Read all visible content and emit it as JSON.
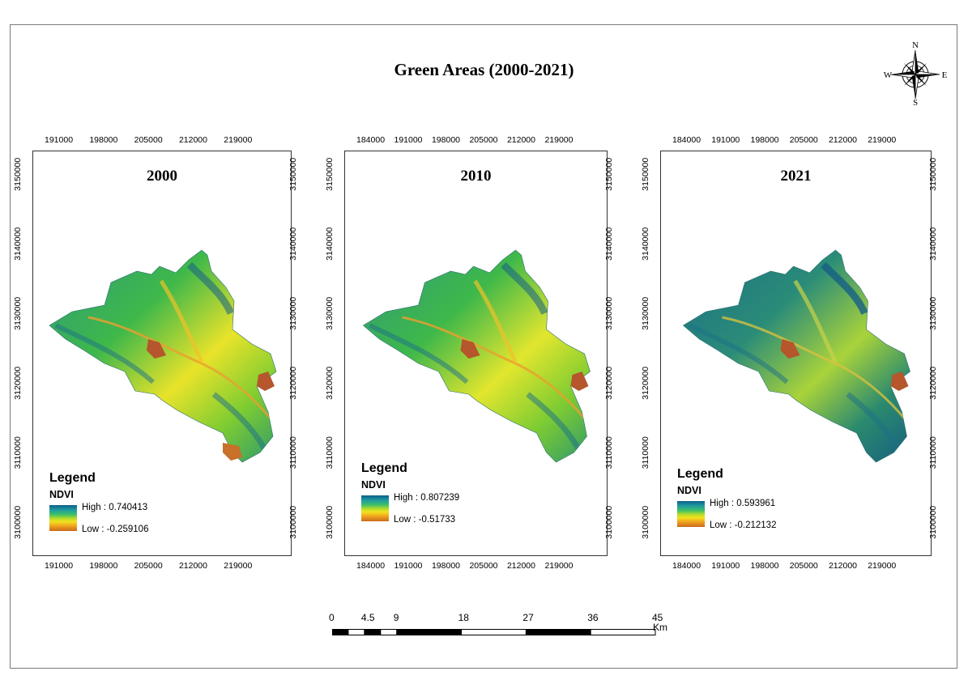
{
  "title": "Green Areas (2000-2021)",
  "north_arrow": {
    "n": "N",
    "s": "S",
    "e": "E",
    "w": "W"
  },
  "panels": [
    {
      "year": "2000",
      "top_ticks": [
        "191000",
        "198000",
        "205000",
        "212000",
        "219000"
      ],
      "bottom_ticks": [
        "191000",
        "198000",
        "205000",
        "212000",
        "219000"
      ],
      "left_ticks": [
        "3150000",
        "3140000",
        "3130000",
        "3120000",
        "3110000",
        "3100000"
      ],
      "right_ticks": [
        "3150000",
        "3140000",
        "3130000",
        "3120000",
        "3110000",
        "3100000"
      ],
      "legend": {
        "title": "Legend",
        "ndvi": "NDVI",
        "high": "High : 0.740413",
        "low": "Low : -0.259106"
      }
    },
    {
      "year": "2010",
      "top_ticks": [
        "184000",
        "191000",
        "198000",
        "205000",
        "212000",
        "219000"
      ],
      "bottom_ticks": [
        "184000",
        "191000",
        "198000",
        "205000",
        "212000",
        "219000"
      ],
      "left_ticks": [
        "3150000",
        "3140000",
        "3130000",
        "3120000",
        "3110000",
        "3100000"
      ],
      "right_ticks": [
        "3150000",
        "3140000",
        "3130000",
        "3120000",
        "3110000",
        "3100000"
      ],
      "legend": {
        "title": "Legend",
        "ndvi": "NDVI",
        "high": "High : 0.807239",
        "low": "Low : -0.51733"
      }
    },
    {
      "year": "2021",
      "top_ticks": [
        "184000",
        "191000",
        "198000",
        "205000",
        "212000",
        "219000"
      ],
      "bottom_ticks": [
        "184000",
        "191000",
        "198000",
        "205000",
        "212000",
        "219000"
      ],
      "left_ticks": [
        "3150000",
        "3140000",
        "3130000",
        "3120000",
        "3110000",
        "3100000"
      ],
      "right_ticks": [
        "3150000",
        "3140000",
        "3130000",
        "3120000",
        "3110000",
        "3100000"
      ],
      "legend": {
        "title": "Legend",
        "ndvi": "NDVI",
        "high": "High : 0.593961",
        "low": "Low : -0.212132"
      }
    }
  ],
  "scalebar": {
    "labels": [
      "0",
      "4.5",
      "9",
      "18",
      "27",
      "36",
      "45"
    ],
    "unit": "Km"
  },
  "colors": {
    "ndvi_high": "#0d5f8a",
    "ndvi_mid": "#3cbf6a",
    "ndvi_yellow": "#f3e21e",
    "ndvi_low": "#c96a1c",
    "bare": "#b5562c"
  }
}
